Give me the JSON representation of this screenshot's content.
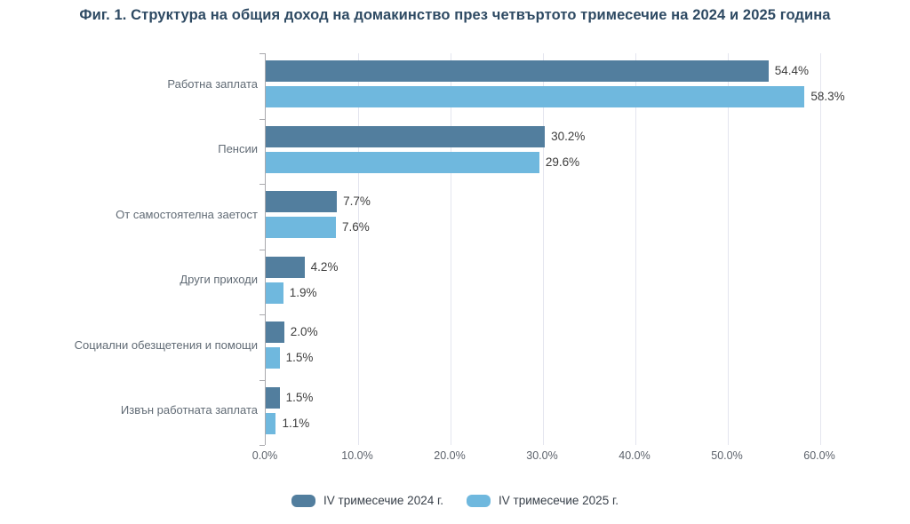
{
  "title": "Фиг. 1. Структура на общия доход на домакинство през четвъртото тримесечие на 2024 и 2025 година",
  "chart_data": {
    "type": "bar",
    "orientation": "horizontal",
    "title": "Фиг. 1. Структура на общия доход на домакинство през четвъртото тримесечие на 2024 и 2025 година",
    "categories": [
      "Работна заплата",
      "Пенсии",
      "От самостоятелна заетост",
      "Други приходи",
      "Социални обезщетения и помощи",
      "Извън работната заплата"
    ],
    "series": [
      {
        "name": "IV тримесечие 2024 г.",
        "color": "#527e9e",
        "values": [
          54.4,
          30.2,
          7.7,
          4.2,
          2.0,
          1.5
        ]
      },
      {
        "name": "IV тримесечие 2025 г.",
        "color": "#6fb8de",
        "values": [
          58.3,
          29.6,
          7.6,
          1.9,
          1.5,
          1.1
        ]
      }
    ],
    "value_suffix": "%",
    "value_decimals": 1,
    "x_ticks": [
      "0.0%",
      "10.0%",
      "20.0%",
      "30.0%",
      "40.0%",
      "50.0%",
      "60.0%"
    ],
    "xlim": [
      0,
      60
    ],
    "grid": true,
    "legend_position": "bottom",
    "colors": {
      "axis": "#a9a9ad",
      "gridline": "#e4e5ef",
      "title_text": "#2e4a63",
      "category_text": "#616b75",
      "value_text": "#3d3d3d",
      "tick_text": "#5c626b"
    }
  }
}
